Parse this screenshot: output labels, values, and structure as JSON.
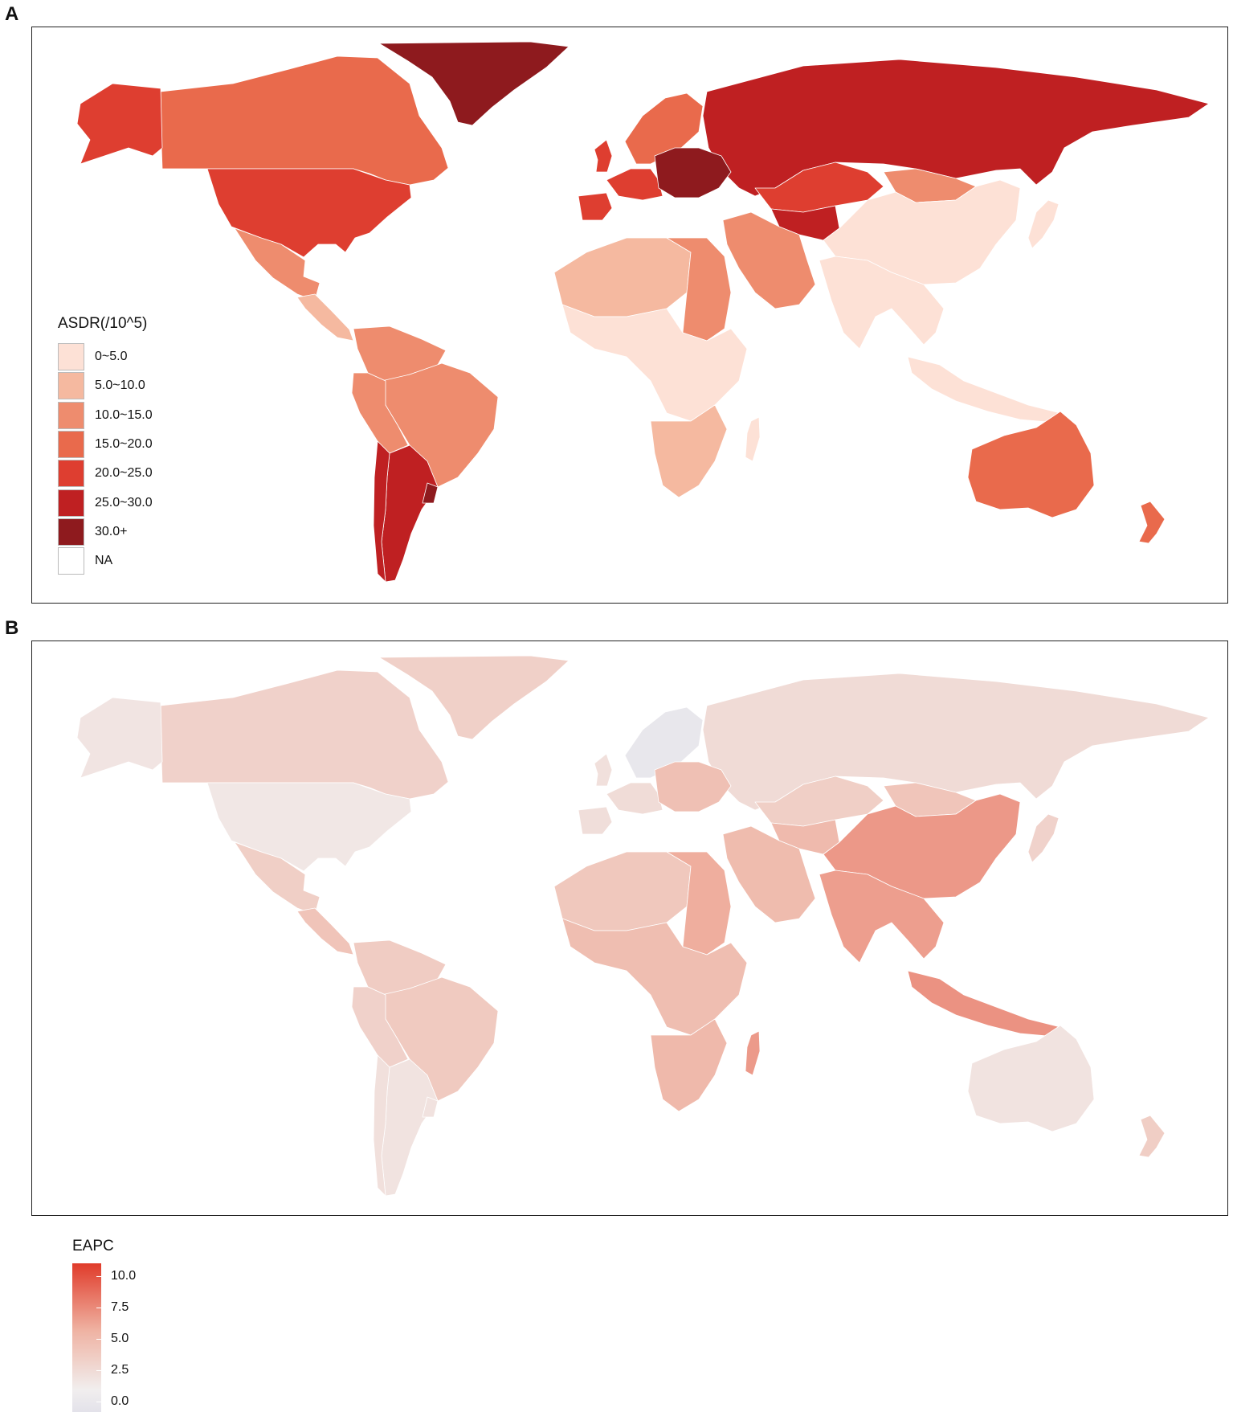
{
  "panels": [
    {
      "letter": "A"
    },
    {
      "letter": "B"
    }
  ],
  "legend_asdr": {
    "title": "ASDR(/10^5)",
    "items": [
      {
        "label": "0~5.0",
        "color": "#fde1d6"
      },
      {
        "label": "5.0~10.0",
        "color": "#f5b9a0"
      },
      {
        "label": "10.0~15.0",
        "color": "#ee8c6e"
      },
      {
        "label": "15.0~20.0",
        "color": "#e96a4c"
      },
      {
        "label": "20.0~25.0",
        "color": "#de3e30"
      },
      {
        "label": "25.0~30.0",
        "color": "#bf2022"
      },
      {
        "label": "30.0+",
        "color": "#8e1a1e"
      },
      {
        "label": "NA",
        "color": "#ffffff"
      }
    ]
  },
  "legend_eapc": {
    "title": "EAPC",
    "ticks": [
      {
        "label": "10.0",
        "value": 10.0
      },
      {
        "label": "7.5",
        "value": 7.5
      },
      {
        "label": "5.0",
        "value": 5.0
      },
      {
        "label": "2.5",
        "value": 2.5
      },
      {
        "label": "0.0",
        "value": 0.0
      }
    ],
    "range": [
      -0.8,
      11.0
    ],
    "colors": {
      "low": "#e3e2ea",
      "zero": "#f1eeee",
      "mid": "#efb2a2",
      "high": "#e03b2a"
    }
  },
  "map_a_regions": [
    {
      "name": "greenland",
      "category": "30.0+"
    },
    {
      "name": "canada",
      "category": "15.0~20.0"
    },
    {
      "name": "alaska",
      "category": "20.0~25.0"
    },
    {
      "name": "usa",
      "category": "20.0~25.0"
    },
    {
      "name": "mexico",
      "category": "10.0~15.0"
    },
    {
      "name": "central-america",
      "category": "5.0~10.0"
    },
    {
      "name": "colombia-venezuela",
      "category": "10.0~15.0"
    },
    {
      "name": "brazil",
      "category": "10.0~15.0"
    },
    {
      "name": "peru-bolivia",
      "category": "10.0~15.0"
    },
    {
      "name": "argentina",
      "category": "25.0~30.0"
    },
    {
      "name": "chile",
      "category": "25.0~30.0"
    },
    {
      "name": "uruguay",
      "category": "30.0+"
    },
    {
      "name": "russia",
      "category": "25.0~30.0"
    },
    {
      "name": "scandinavia",
      "category": "15.0~20.0"
    },
    {
      "name": "western-europe",
      "category": "20.0~25.0"
    },
    {
      "name": "central-europe",
      "category": "30.0+"
    },
    {
      "name": "uk",
      "category": "20.0~25.0"
    },
    {
      "name": "iberia",
      "category": "20.0~25.0"
    },
    {
      "name": "kazakhstan",
      "category": "20.0~25.0"
    },
    {
      "name": "central-asia",
      "category": "25.0~30.0"
    },
    {
      "name": "mongolia",
      "category": "10.0~15.0"
    },
    {
      "name": "china",
      "category": "0~5.0"
    },
    {
      "name": "india-se-asia",
      "category": "0~5.0"
    },
    {
      "name": "middle-east",
      "category": "10.0~15.0"
    },
    {
      "name": "north-africa",
      "category": "5.0~10.0"
    },
    {
      "name": "egypt-sudan",
      "category": "10.0~15.0"
    },
    {
      "name": "west-central-africa",
      "category": "0~5.0"
    },
    {
      "name": "southern-africa",
      "category": "5.0~10.0"
    },
    {
      "name": "madagascar",
      "category": "0~5.0"
    },
    {
      "name": "indonesia",
      "category": "0~5.0"
    },
    {
      "name": "japan",
      "category": "0~5.0"
    },
    {
      "name": "australia",
      "category": "15.0~20.0"
    },
    {
      "name": "new-zealand",
      "category": "15.0~20.0"
    }
  ],
  "map_b_regions": [
    {
      "name": "greenland",
      "value": 2.5
    },
    {
      "name": "canada",
      "value": 2.4
    },
    {
      "name": "alaska",
      "value": 0.8
    },
    {
      "name": "usa",
      "value": 0.6
    },
    {
      "name": "mexico",
      "value": 2.6
    },
    {
      "name": "central-america",
      "value": 3.5
    },
    {
      "name": "colombia-venezuela",
      "value": 2.8
    },
    {
      "name": "brazil",
      "value": 3.0
    },
    {
      "name": "peru-bolivia",
      "value": 2.4
    },
    {
      "name": "argentina",
      "value": 0.9
    },
    {
      "name": "chile",
      "value": 1.2
    },
    {
      "name": "uruguay",
      "value": 1.0
    },
    {
      "name": "russia",
      "value": 1.6
    },
    {
      "name": "scandinavia",
      "value": -0.5
    },
    {
      "name": "western-europe",
      "value": 1.5
    },
    {
      "name": "central-europe",
      "value": 3.8
    },
    {
      "name": "uk",
      "value": 1.2
    },
    {
      "name": "iberia",
      "value": 1.3
    },
    {
      "name": "kazakhstan",
      "value": 2.6
    },
    {
      "name": "central-asia",
      "value": 4.3
    },
    {
      "name": "mongolia",
      "value": 3.4
    },
    {
      "name": "china",
      "value": 6.3
    },
    {
      "name": "india-se-asia",
      "value": 6.0
    },
    {
      "name": "middle-east",
      "value": 4.2
    },
    {
      "name": "north-africa",
      "value": 3.2
    },
    {
      "name": "egypt-sudan",
      "value": 5.2
    },
    {
      "name": "west-central-africa",
      "value": 4.0
    },
    {
      "name": "southern-africa",
      "value": 4.4
    },
    {
      "name": "madagascar",
      "value": 6.2
    },
    {
      "name": "indonesia",
      "value": 6.6
    },
    {
      "name": "japan",
      "value": 2.3
    },
    {
      "name": "australia",
      "value": 0.9
    },
    {
      "name": "new-zealand",
      "value": 2.7
    }
  ]
}
